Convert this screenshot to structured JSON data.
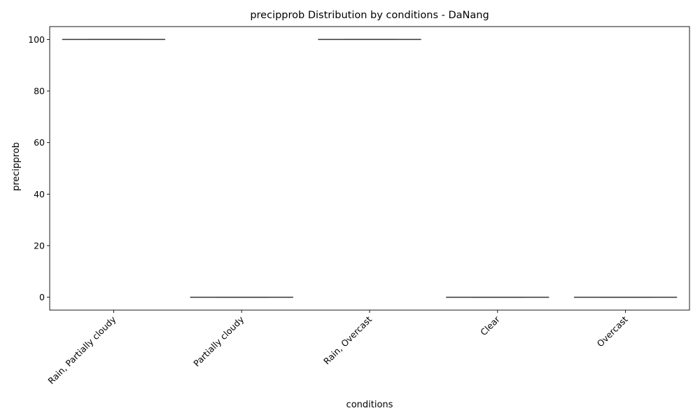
{
  "chart_data": {
    "type": "box",
    "title": "precipprob Distribution by conditions - DaNang",
    "xlabel": "conditions",
    "ylabel": "precipprob",
    "categories": [
      "Rain, Partially cloudy",
      "Partially cloudy",
      "Rain, Overcast",
      "Clear",
      "Overcast"
    ],
    "series": [
      {
        "stats": [
          {
            "min": 100,
            "q1": 100,
            "median": 100,
            "q3": 100,
            "max": 100
          },
          {
            "min": 0,
            "q1": 0,
            "median": 0,
            "q3": 0,
            "max": 0
          },
          {
            "min": 100,
            "q1": 100,
            "median": 100,
            "q3": 100,
            "max": 100
          },
          {
            "min": 0,
            "q1": 0,
            "median": 0,
            "q3": 0,
            "max": 0
          },
          {
            "min": 0,
            "q1": 0,
            "median": 0,
            "q3": 0,
            "max": 0
          }
        ]
      }
    ],
    "yticks": [
      0,
      20,
      40,
      60,
      80,
      100
    ],
    "ylim": [
      -5,
      105
    ],
    "grid": false,
    "legend": "none",
    "box_color": "#3a3a3a"
  }
}
